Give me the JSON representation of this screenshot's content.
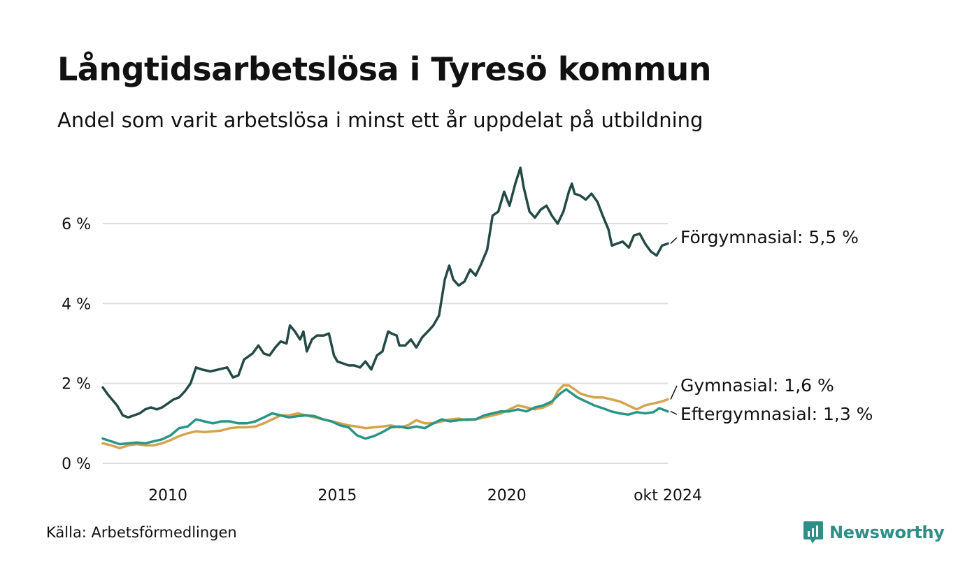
{
  "title": "Långtidsarbetslösa i Tyresö kommun",
  "subtitle": "Andel som varit arbetslösa i minst ett år uppdelat på utbildning",
  "source": "Källa: Arbetsförmedlingen",
  "brand": "Newsworthy",
  "chart_data": {
    "type": "line",
    "title": "Långtidsarbetslösa i Tyresö kommun",
    "subtitle": "Andel som varit arbetslösa i minst ett år uppdelat på utbildning",
    "xlabel": "",
    "ylabel": "",
    "x_range": [
      2008.08,
      2024.75
    ],
    "ylim": [
      0,
      7.5
    ],
    "grid": true,
    "y_ticks": [
      {
        "value": 0,
        "label": "0 %"
      },
      {
        "value": 2,
        "label": "2 %"
      },
      {
        "value": 4,
        "label": "4 %"
      },
      {
        "value": 6,
        "label": "6 %"
      }
    ],
    "x_ticks": [
      {
        "value": 2010,
        "label": "2010"
      },
      {
        "value": 2015,
        "label": "2015"
      },
      {
        "value": 2020,
        "label": "2020"
      },
      {
        "value": 2024.75,
        "label": "okt 2024"
      }
    ],
    "series": [
      {
        "name": "Förgymnasial",
        "end_label": "Förgymnasial: 5,5 %",
        "color": "#234a44",
        "points": [
          [
            2008.08,
            1.9
          ],
          [
            2008.25,
            1.7
          ],
          [
            2008.5,
            1.45
          ],
          [
            2008.67,
            1.2
          ],
          [
            2008.83,
            1.15
          ],
          [
            2009.0,
            1.2
          ],
          [
            2009.17,
            1.25
          ],
          [
            2009.33,
            1.35
          ],
          [
            2009.5,
            1.4
          ],
          [
            2009.67,
            1.35
          ],
          [
            2009.83,
            1.4
          ],
          [
            2010.0,
            1.5
          ],
          [
            2010.17,
            1.6
          ],
          [
            2010.33,
            1.65
          ],
          [
            2010.5,
            1.8
          ],
          [
            2010.67,
            2.0
          ],
          [
            2010.83,
            2.4
          ],
          [
            2011.0,
            2.35
          ],
          [
            2011.25,
            2.3
          ],
          [
            2011.5,
            2.35
          ],
          [
            2011.75,
            2.4
          ],
          [
            2011.92,
            2.15
          ],
          [
            2012.08,
            2.2
          ],
          [
            2012.25,
            2.6
          ],
          [
            2012.5,
            2.75
          ],
          [
            2012.67,
            2.95
          ],
          [
            2012.83,
            2.75
          ],
          [
            2013.0,
            2.7
          ],
          [
            2013.17,
            2.9
          ],
          [
            2013.33,
            3.05
          ],
          [
            2013.5,
            3.0
          ],
          [
            2013.6,
            3.45
          ],
          [
            2013.75,
            3.3
          ],
          [
            2013.9,
            3.1
          ],
          [
            2014.0,
            3.3
          ],
          [
            2014.1,
            2.8
          ],
          [
            2014.25,
            3.1
          ],
          [
            2014.4,
            3.2
          ],
          [
            2014.6,
            3.2
          ],
          [
            2014.75,
            3.25
          ],
          [
            2014.9,
            2.7
          ],
          [
            2015.0,
            2.55
          ],
          [
            2015.17,
            2.5
          ],
          [
            2015.33,
            2.45
          ],
          [
            2015.5,
            2.45
          ],
          [
            2015.67,
            2.4
          ],
          [
            2015.83,
            2.55
          ],
          [
            2016.0,
            2.35
          ],
          [
            2016.17,
            2.7
          ],
          [
            2016.33,
            2.8
          ],
          [
            2016.5,
            3.3
          ],
          [
            2016.6,
            3.25
          ],
          [
            2016.75,
            3.2
          ],
          [
            2016.83,
            2.95
          ],
          [
            2017.0,
            2.95
          ],
          [
            2017.17,
            3.1
          ],
          [
            2017.33,
            2.9
          ],
          [
            2017.5,
            3.15
          ],
          [
            2017.67,
            3.3
          ],
          [
            2017.83,
            3.45
          ],
          [
            2018.0,
            3.7
          ],
          [
            2018.17,
            4.6
          ],
          [
            2018.3,
            4.95
          ],
          [
            2018.42,
            4.6
          ],
          [
            2018.58,
            4.45
          ],
          [
            2018.75,
            4.55
          ],
          [
            2018.92,
            4.85
          ],
          [
            2019.08,
            4.7
          ],
          [
            2019.25,
            5.0
          ],
          [
            2019.42,
            5.35
          ],
          [
            2019.58,
            6.2
          ],
          [
            2019.75,
            6.3
          ],
          [
            2019.92,
            6.8
          ],
          [
            2020.08,
            6.45
          ],
          [
            2020.25,
            7.0
          ],
          [
            2020.4,
            7.4
          ],
          [
            2020.5,
            6.9
          ],
          [
            2020.67,
            6.3
          ],
          [
            2020.83,
            6.15
          ],
          [
            2021.0,
            6.35
          ],
          [
            2021.17,
            6.45
          ],
          [
            2021.33,
            6.2
          ],
          [
            2021.5,
            6.0
          ],
          [
            2021.67,
            6.3
          ],
          [
            2021.83,
            6.8
          ],
          [
            2021.92,
            7.0
          ],
          [
            2022.0,
            6.75
          ],
          [
            2022.17,
            6.7
          ],
          [
            2022.33,
            6.6
          ],
          [
            2022.5,
            6.75
          ],
          [
            2022.67,
            6.55
          ],
          [
            2022.83,
            6.2
          ],
          [
            2023.0,
            5.85
          ],
          [
            2023.1,
            5.45
          ],
          [
            2023.25,
            5.5
          ],
          [
            2023.42,
            5.55
          ],
          [
            2023.6,
            5.4
          ],
          [
            2023.75,
            5.7
          ],
          [
            2023.92,
            5.75
          ],
          [
            2024.08,
            5.5
          ],
          [
            2024.25,
            5.3
          ],
          [
            2024.42,
            5.2
          ],
          [
            2024.58,
            5.45
          ],
          [
            2024.75,
            5.5
          ]
        ]
      },
      {
        "name": "Gymnasial",
        "end_label": "Gymnasial: 1,6 %",
        "color": "#d4a350",
        "points": [
          [
            2008.08,
            0.5
          ],
          [
            2008.33,
            0.45
          ],
          [
            2008.58,
            0.38
          ],
          [
            2008.83,
            0.45
          ],
          [
            2009.08,
            0.48
          ],
          [
            2009.33,
            0.45
          ],
          [
            2009.58,
            0.45
          ],
          [
            2009.83,
            0.5
          ],
          [
            2010.08,
            0.58
          ],
          [
            2010.33,
            0.68
          ],
          [
            2010.58,
            0.75
          ],
          [
            2010.83,
            0.8
          ],
          [
            2011.08,
            0.78
          ],
          [
            2011.33,
            0.8
          ],
          [
            2011.58,
            0.82
          ],
          [
            2011.83,
            0.88
          ],
          [
            2012.08,
            0.9
          ],
          [
            2012.33,
            0.9
          ],
          [
            2012.58,
            0.92
          ],
          [
            2012.83,
            1.0
          ],
          [
            2013.08,
            1.1
          ],
          [
            2013.33,
            1.2
          ],
          [
            2013.58,
            1.2
          ],
          [
            2013.83,
            1.25
          ],
          [
            2014.08,
            1.2
          ],
          [
            2014.33,
            1.15
          ],
          [
            2014.58,
            1.1
          ],
          [
            2014.83,
            1.05
          ],
          [
            2015.08,
            1.0
          ],
          [
            2015.33,
            0.95
          ],
          [
            2015.58,
            0.92
          ],
          [
            2015.83,
            0.88
          ],
          [
            2016.08,
            0.9
          ],
          [
            2016.33,
            0.92
          ],
          [
            2016.58,
            0.95
          ],
          [
            2016.83,
            0.9
          ],
          [
            2017.08,
            0.95
          ],
          [
            2017.33,
            1.08
          ],
          [
            2017.58,
            1.0
          ],
          [
            2017.83,
            1.0
          ],
          [
            2018.08,
            1.05
          ],
          [
            2018.33,
            1.1
          ],
          [
            2018.58,
            1.12
          ],
          [
            2018.83,
            1.08
          ],
          [
            2019.08,
            1.1
          ],
          [
            2019.33,
            1.15
          ],
          [
            2019.58,
            1.2
          ],
          [
            2019.83,
            1.25
          ],
          [
            2020.08,
            1.35
          ],
          [
            2020.33,
            1.45
          ],
          [
            2020.58,
            1.4
          ],
          [
            2020.83,
            1.35
          ],
          [
            2021.08,
            1.4
          ],
          [
            2021.33,
            1.5
          ],
          [
            2021.5,
            1.8
          ],
          [
            2021.67,
            1.95
          ],
          [
            2021.83,
            1.95
          ],
          [
            2022.0,
            1.85
          ],
          [
            2022.17,
            1.75
          ],
          [
            2022.33,
            1.7
          ],
          [
            2022.58,
            1.65
          ],
          [
            2022.83,
            1.65
          ],
          [
            2023.08,
            1.6
          ],
          [
            2023.33,
            1.55
          ],
          [
            2023.58,
            1.45
          ],
          [
            2023.83,
            1.35
          ],
          [
            2024.08,
            1.45
          ],
          [
            2024.33,
            1.5
          ],
          [
            2024.58,
            1.55
          ],
          [
            2024.75,
            1.6
          ]
        ]
      },
      {
        "name": "Eftergymnasial",
        "end_label": "Eftergymnasial: 1,3 %",
        "color": "#2a9586",
        "points": [
          [
            2008.08,
            0.62
          ],
          [
            2008.33,
            0.55
          ],
          [
            2008.58,
            0.48
          ],
          [
            2008.83,
            0.5
          ],
          [
            2009.08,
            0.52
          ],
          [
            2009.33,
            0.5
          ],
          [
            2009.58,
            0.55
          ],
          [
            2009.83,
            0.6
          ],
          [
            2010.08,
            0.7
          ],
          [
            2010.33,
            0.88
          ],
          [
            2010.58,
            0.92
          ],
          [
            2010.83,
            1.1
          ],
          [
            2011.08,
            1.05
          ],
          [
            2011.33,
            1.0
          ],
          [
            2011.58,
            1.05
          ],
          [
            2011.83,
            1.05
          ],
          [
            2012.08,
            1.0
          ],
          [
            2012.33,
            1.0
          ],
          [
            2012.58,
            1.05
          ],
          [
            2012.83,
            1.15
          ],
          [
            2013.08,
            1.25
          ],
          [
            2013.33,
            1.2
          ],
          [
            2013.58,
            1.15
          ],
          [
            2013.83,
            1.18
          ],
          [
            2014.08,
            1.2
          ],
          [
            2014.33,
            1.18
          ],
          [
            2014.58,
            1.1
          ],
          [
            2014.83,
            1.05
          ],
          [
            2015.08,
            0.95
          ],
          [
            2015.33,
            0.9
          ],
          [
            2015.58,
            0.7
          ],
          [
            2015.83,
            0.62
          ],
          [
            2016.08,
            0.68
          ],
          [
            2016.33,
            0.78
          ],
          [
            2016.58,
            0.9
          ],
          [
            2016.83,
            0.92
          ],
          [
            2017.08,
            0.88
          ],
          [
            2017.33,
            0.92
          ],
          [
            2017.58,
            0.88
          ],
          [
            2017.83,
            1.0
          ],
          [
            2018.08,
            1.1
          ],
          [
            2018.33,
            1.05
          ],
          [
            2018.58,
            1.08
          ],
          [
            2018.83,
            1.1
          ],
          [
            2019.08,
            1.1
          ],
          [
            2019.33,
            1.2
          ],
          [
            2019.58,
            1.25
          ],
          [
            2019.83,
            1.3
          ],
          [
            2020.08,
            1.3
          ],
          [
            2020.33,
            1.35
          ],
          [
            2020.58,
            1.3
          ],
          [
            2020.83,
            1.4
          ],
          [
            2021.08,
            1.45
          ],
          [
            2021.33,
            1.55
          ],
          [
            2021.58,
            1.75
          ],
          [
            2021.75,
            1.85
          ],
          [
            2021.92,
            1.75
          ],
          [
            2022.08,
            1.65
          ],
          [
            2022.33,
            1.55
          ],
          [
            2022.58,
            1.45
          ],
          [
            2022.83,
            1.38
          ],
          [
            2023.08,
            1.3
          ],
          [
            2023.33,
            1.25
          ],
          [
            2023.58,
            1.22
          ],
          [
            2023.83,
            1.28
          ],
          [
            2024.08,
            1.25
          ],
          [
            2024.33,
            1.28
          ],
          [
            2024.5,
            1.38
          ],
          [
            2024.75,
            1.3
          ]
        ]
      }
    ]
  }
}
